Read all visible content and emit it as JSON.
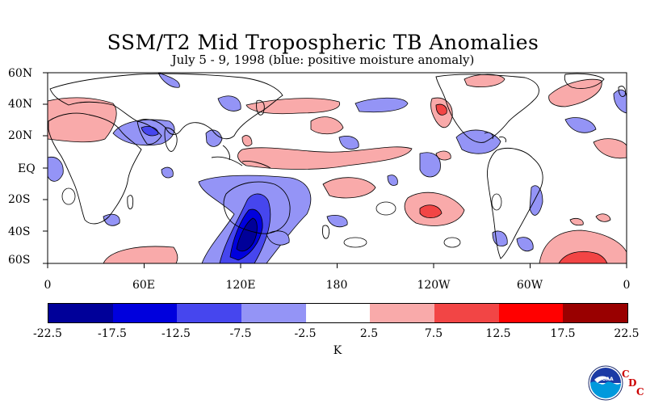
{
  "title": "SSM/T2 Mid Tropospheric TB Anomalies",
  "subtitle": "July 5 - 9, 1998 (blue: positive moisture anomaly)",
  "lat_labels": [
    "60N",
    "40N",
    "20N",
    "EQ",
    "20S",
    "40S",
    "60S"
  ],
  "lon_labels": [
    "0",
    "60E",
    "120E",
    "180",
    "120W",
    "60W",
    "0"
  ],
  "legend": {
    "levels": [
      "-22.5",
      "-17.5",
      "-12.5",
      "-7.5",
      "-2.5",
      "2.5",
      "7.5",
      "12.5",
      "17.5",
      "22.5"
    ],
    "colors": [
      "#000099",
      "#0000dd",
      "#4646ee",
      "#9494f6",
      "#ffffff",
      "#f9aaaa",
      "#f24545",
      "#ff0000",
      "#990000"
    ],
    "unit": "K"
  },
  "logo": {
    "name": "noaa-logo",
    "text": "NOAA",
    "c1": "C",
    "d": "D",
    "c2": "C"
  },
  "colors": {
    "positive_fill_light": "#f9aaaa",
    "positive_fill_mid": "#f24545",
    "negative_fill_light": "#9494f6",
    "negative_fill_mid": "#4646ee",
    "negative_fill_dark": "#0000dd",
    "negative_fill_darkest": "#000099"
  }
}
